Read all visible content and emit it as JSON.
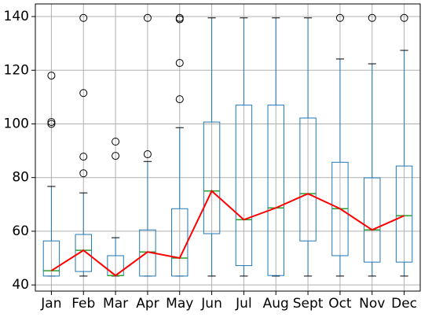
{
  "chart_data": {
    "type": "box",
    "categories": [
      "Jan",
      "Feb",
      "Mar",
      "Apr",
      "May",
      "Jun",
      "Jul",
      "Aug",
      "Sept",
      "Oct",
      "Nov",
      "Dec"
    ],
    "boxes": [
      {
        "min": 43.3,
        "q1": 43.3,
        "median": 45.3,
        "q3": 56.4,
        "max": 76.7,
        "outliers": [
          118,
          100.7,
          100
        ]
      },
      {
        "min": 43.3,
        "q1": 45,
        "median": 52.9,
        "q3": 58.8,
        "max": 74.3,
        "outliers": [
          139.5,
          111.5,
          87.8,
          81.6
        ]
      },
      {
        "min": 43.3,
        "q1": 43.5,
        "median": 43.5,
        "q3": 50.9,
        "max": 57.6,
        "outliers": [
          93.4,
          88.1
        ]
      },
      {
        "min": 43.3,
        "q1": 43.3,
        "median": 52.3,
        "q3": 60.5,
        "max": 86,
        "outliers": [
          88.7,
          139.5
        ]
      },
      {
        "min": 43.3,
        "q1": 43.3,
        "median": 50,
        "q3": 68.4,
        "max": 98.6,
        "outliers": [
          109.2,
          122.7,
          139.5,
          139
        ]
      },
      {
        "min": 43.3,
        "q1": 59.1,
        "median": 75,
        "q3": 100.7,
        "max": 139.5,
        "outliers": []
      },
      {
        "min": 43.3,
        "q1": 47.2,
        "median": 64.3,
        "q3": 107,
        "max": 139.5,
        "outliers": []
      },
      {
        "min": 43.3,
        "q1": 43.5,
        "median": 68.7,
        "q3": 107,
        "max": 139.5,
        "outliers": []
      },
      {
        "min": 43.3,
        "q1": 56.4,
        "median": 74,
        "q3": 102.2,
        "max": 139.5,
        "outliers": []
      },
      {
        "min": 43.3,
        "q1": 50.9,
        "median": 68.4,
        "q3": 85.7,
        "max": 124.2,
        "outliers": [
          139.5
        ]
      },
      {
        "min": 43.3,
        "q1": 48.5,
        "median": 60.5,
        "q3": 79.9,
        "max": 122.4,
        "outliers": [
          139.5
        ]
      },
      {
        "min": 43.3,
        "q1": 48.5,
        "median": 65.8,
        "q3": 84.3,
        "max": 127.4,
        "outliers": [
          139.5
        ]
      }
    ],
    "ylim": [
      37.7,
      144.7
    ],
    "yticks": [
      40,
      60,
      80,
      100,
      120,
      140
    ],
    "grid": true,
    "color": "#1f77b4",
    "median_color": "#2ca02c",
    "line_color": "#ff0000"
  }
}
